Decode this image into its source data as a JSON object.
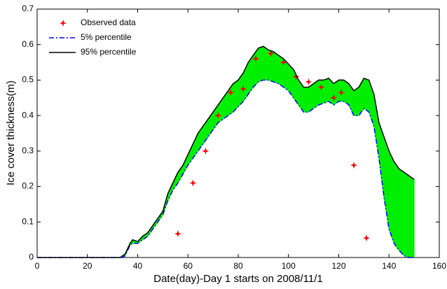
{
  "chart_data": {
    "type": "line",
    "x_label": "Date(day)-Day 1 starts on 2008/11/1",
    "y_label": "Ice cover thickness(m)",
    "xlim": [
      0,
      160
    ],
    "xticks": [
      0,
      20,
      40,
      60,
      80,
      100,
      120,
      140,
      160
    ],
    "ylim": [
      0,
      0.7
    ],
    "yticks": [
      0,
      0.1,
      0.2,
      0.3,
      0.4,
      0.5,
      0.6,
      0.7
    ],
    "band_color": "#00ee00",
    "legend": "upper left",
    "series": [
      {
        "name": "Observed data",
        "kind": "scatter",
        "color": "#ff0000",
        "x": [
          56,
          62,
          67,
          72,
          77,
          82,
          87,
          93,
          98,
          103,
          108,
          113,
          118,
          121,
          126,
          131
        ],
        "values": [
          0.067,
          0.21,
          0.3,
          0.4,
          0.465,
          0.475,
          0.56,
          0.575,
          0.55,
          0.51,
          0.495,
          0.48,
          0.45,
          0.465,
          0.26,
          0.055
        ]
      },
      {
        "name": "5%  percentile",
        "kind": "line",
        "color": "#0000ff",
        "dash": "7,3,2,3",
        "x": [
          0,
          34,
          35,
          37,
          38,
          40,
          42,
          44,
          46,
          48,
          50,
          52,
          54,
          56,
          58,
          60,
          62,
          64,
          66,
          68,
          70,
          72,
          74,
          76,
          78,
          80,
          82,
          84,
          86,
          88,
          90,
          92,
          94,
          96,
          98,
          100,
          102,
          104,
          106,
          108,
          110,
          112,
          114,
          116,
          118,
          120,
          122,
          124,
          126,
          128,
          130,
          132,
          134,
          136,
          138,
          140,
          142,
          144,
          146,
          148,
          150
        ],
        "values": [
          0,
          0,
          0.005,
          0.035,
          0.04,
          0.04,
          0.05,
          0.06,
          0.08,
          0.1,
          0.12,
          0.16,
          0.19,
          0.21,
          0.235,
          0.26,
          0.28,
          0.3,
          0.32,
          0.34,
          0.36,
          0.38,
          0.39,
          0.4,
          0.41,
          0.425,
          0.44,
          0.46,
          0.48,
          0.495,
          0.5,
          0.5,
          0.495,
          0.49,
          0.48,
          0.47,
          0.45,
          0.43,
          0.41,
          0.41,
          0.42,
          0.43,
          0.435,
          0.44,
          0.43,
          0.44,
          0.44,
          0.43,
          0.4,
          0.4,
          0.42,
          0.41,
          0.37,
          0.28,
          0.17,
          0.08,
          0.04,
          0.02,
          0.005,
          0,
          0
        ]
      },
      {
        "name": "95% percentile",
        "kind": "line",
        "color": "#000000",
        "x": [
          0,
          33,
          35,
          37,
          38,
          40,
          42,
          44,
          46,
          48,
          50,
          52,
          54,
          56,
          58,
          60,
          62,
          64,
          66,
          68,
          70,
          72,
          74,
          76,
          78,
          80,
          82,
          84,
          86,
          88,
          90,
          92,
          94,
          96,
          98,
          100,
          102,
          104,
          106,
          108,
          110,
          112,
          114,
          116,
          118,
          120,
          122,
          124,
          126,
          128,
          130,
          132,
          134,
          136,
          138,
          140,
          142,
          144,
          146,
          148,
          150
        ],
        "values": [
          0,
          0,
          0.01,
          0.04,
          0.05,
          0.045,
          0.06,
          0.07,
          0.09,
          0.11,
          0.13,
          0.18,
          0.21,
          0.24,
          0.26,
          0.29,
          0.32,
          0.35,
          0.37,
          0.39,
          0.41,
          0.43,
          0.45,
          0.47,
          0.49,
          0.5,
          0.52,
          0.55,
          0.57,
          0.59,
          0.595,
          0.585,
          0.58,
          0.57,
          0.56,
          0.545,
          0.53,
          0.5,
          0.48,
          0.48,
          0.49,
          0.5,
          0.5,
          0.505,
          0.49,
          0.5,
          0.5,
          0.49,
          0.47,
          0.48,
          0.505,
          0.5,
          0.46,
          0.38,
          0.34,
          0.3,
          0.27,
          0.25,
          0.24,
          0.23,
          0.22
        ]
      }
    ]
  }
}
